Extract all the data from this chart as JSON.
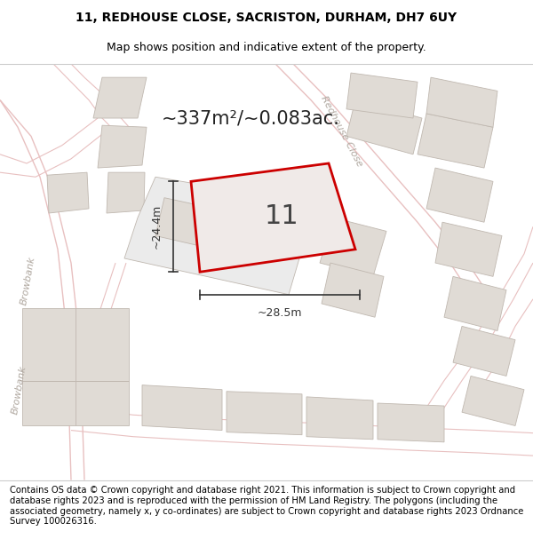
{
  "title_line1": "11, REDHOUSE CLOSE, SACRISTON, DURHAM, DH7 6UY",
  "title_line2": "Map shows position and indicative extent of the property.",
  "footer_text": "Contains OS data © Crown copyright and database right 2021. This information is subject to Crown copyright and database rights 2023 and is reproduced with the permission of HM Land Registry. The polygons (including the associated geometry, namely x, y co-ordinates) are subject to Crown copyright and database rights 2023 Ordnance Survey 100026316.",
  "area_text": "~337m²/~0.083ac.",
  "plot_number": "11",
  "dim_width": "~28.5m",
  "dim_height": "~24.4m",
  "map_bg": "#f2f0ed",
  "plot_fill": "#f0eae8",
  "plot_outline": "#cc0000",
  "building_fill": "#e0dbd5",
  "building_outline": "#c0b8b0",
  "road_line_color": "#e8c0c0",
  "plot_line_color": "#d0a8a8",
  "street_label_color": "#b0a8a0",
  "dim_line_color": "#333333",
  "street_label": "Redhouse Close",
  "street_label2": "Browbank",
  "title_fontsize": 10,
  "subtitle_fontsize": 9,
  "footer_fontsize": 7.2,
  "area_fontsize": 15,
  "number_fontsize": 22,
  "dim_fontsize": 9,
  "street_fontsize": 8
}
